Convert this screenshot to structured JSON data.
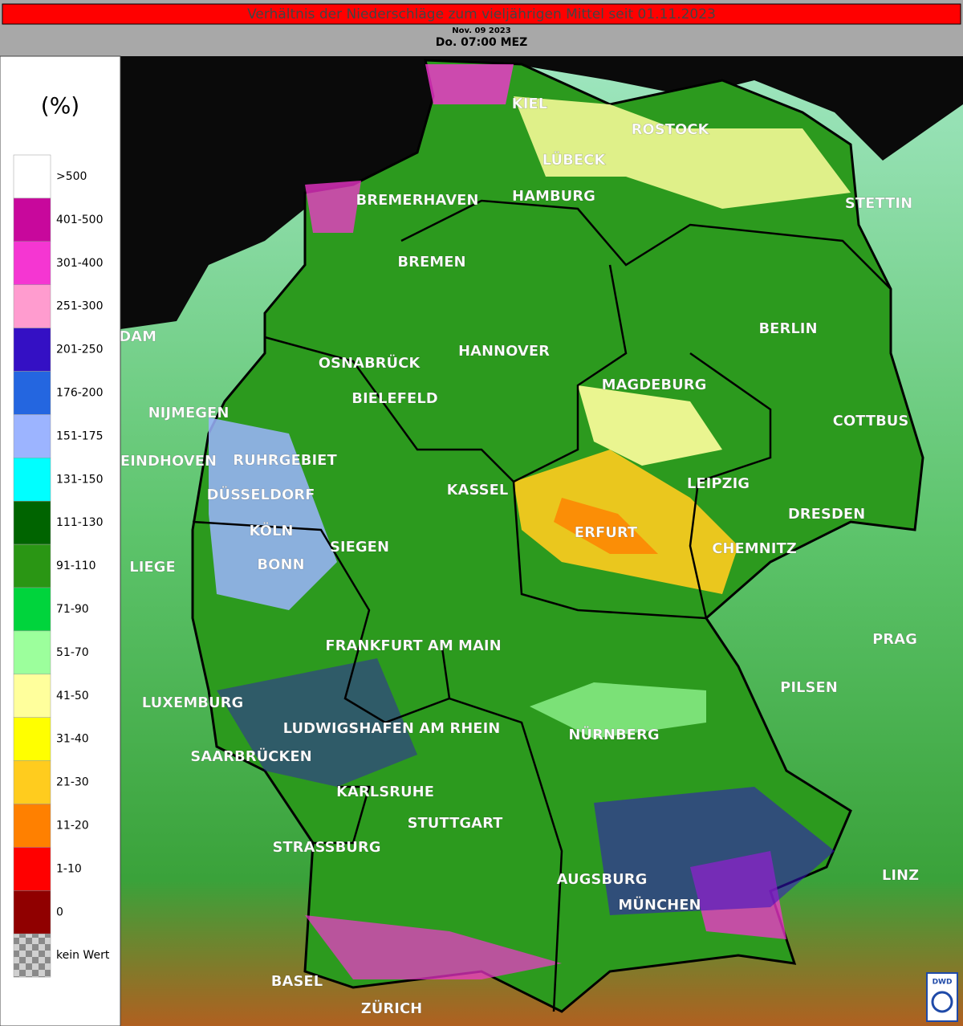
{
  "header": {
    "title": "Verhältnis der Niederschläge zum vieljährigen Mittel seit 01.11.2023",
    "date": "Nov. 09 2023",
    "time": "Do. 07:00 MEZ"
  },
  "legend": {
    "unit": "(%)",
    "items": [
      {
        "label": ">500",
        "color": "#ffffff"
      },
      {
        "label": "401-500",
        "color": "#c8089c"
      },
      {
        "label": "301-400",
        "color": "#f536d2"
      },
      {
        "label": "251-300",
        "color": "#ff9ccf"
      },
      {
        "label": "201-250",
        "color": "#3410c4"
      },
      {
        "label": "176-200",
        "color": "#2466e0"
      },
      {
        "label": "151-175",
        "color": "#9cb4ff"
      },
      {
        "label": "131-150",
        "color": "#00ffff"
      },
      {
        "label": "111-130",
        "color": "#006400"
      },
      {
        "label": "91-110",
        "color": "#2a9614"
      },
      {
        "label": "71-90",
        "color": "#00d43c"
      },
      {
        "label": "51-70",
        "color": "#9cff9c"
      },
      {
        "label": "41-50",
        "color": "#ffff9c"
      },
      {
        "label": "31-40",
        "color": "#ffff00"
      },
      {
        "label": "21-30",
        "color": "#ffcc1e"
      },
      {
        "label": "11-20",
        "color": "#ff8000"
      },
      {
        "label": "1-10",
        "color": "#ff0000"
      },
      {
        "label": "0",
        "color": "#900000"
      },
      {
        "label": "kein Wert"
      }
    ]
  },
  "map": {
    "labels": [
      "KIEL",
      "LÜBECK",
      "ROSTOCK",
      "BREMERHAVEN",
      "HAMBURG",
      "STETTIN",
      "BREMEN",
      "AMSTERDAM",
      "BERLIN",
      "HANNOVER",
      "OSNABRÜCK",
      "BIELEFELD",
      "MAGDEBURG",
      "NIJMEGEN",
      "COTTBUS",
      "EINDHOVEN",
      "RUHRGEBIET",
      "KASSEL",
      "LEIPZIG",
      "DÜSSELDORF",
      "DRESDEN",
      "KÖLN",
      "ERFURT",
      "CHEMNITZ",
      "SIEGEN",
      "BONN",
      "LIEGE",
      "PRAG",
      "FRANKFURT AM MAIN",
      "PILSEN",
      "LUXEMBURG",
      "LUDWIGSHAFEN AM RHEIN",
      "NÜRNBERG",
      "SAARBRÜCKEN",
      "KARLSRUHE",
      "STUTTGART",
      "STRASSBURG",
      "LINZ",
      "AUGSBURG",
      "MÜNCHEN",
      "BASEL",
      "ZÜRICH"
    ]
  },
  "logo": "DWD"
}
